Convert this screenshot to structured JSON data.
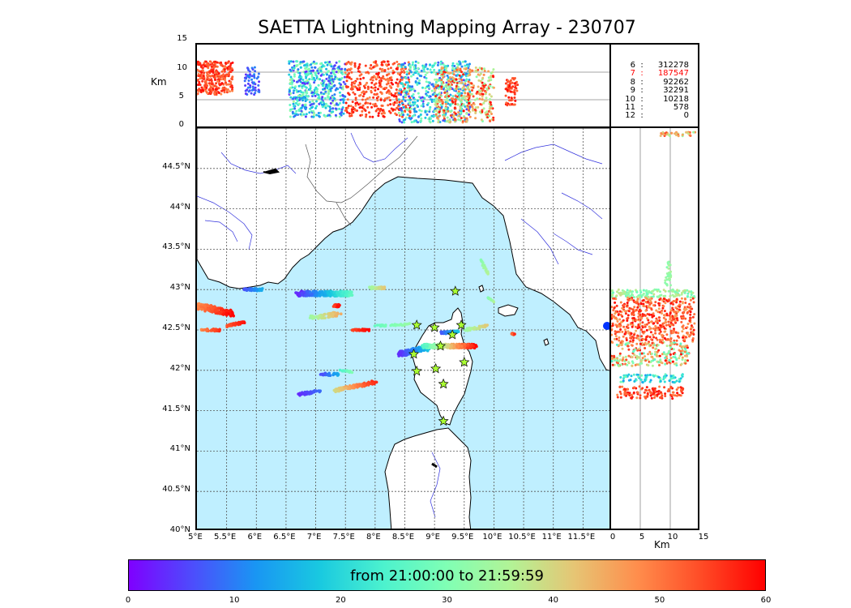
{
  "title": "SAETTA Lightning Mapping Array - 230707",
  "altitude_panel": {
    "ylabel": "Km",
    "yticks": [
      "15",
      "10",
      "5",
      "0"
    ]
  },
  "lat_alt_panel": {
    "xlabel": "Km",
    "xticks": [
      "0",
      "5",
      "10",
      "15"
    ]
  },
  "map": {
    "lat_ticks": [
      "44.5°N",
      "44°N",
      "43.5°N",
      "43°N",
      "42.5°N",
      "42°N",
      "41.5°N",
      "41°N",
      "40.5°N",
      "40°N"
    ],
    "lon_ticks": [
      "5°E",
      "5.5°E",
      "6°E",
      "6.5°E",
      "7°E",
      "7.5°E",
      "8°E",
      "8.5°E",
      "9°E",
      "9.5°E",
      "10°E",
      "10.5°E",
      "11°E",
      "11.5°E"
    ],
    "sea_color": "#bfefff",
    "land_color": "#ffffff",
    "station_marker": "star-icon"
  },
  "stats": [
    {
      "k": "6",
      "v": "312278",
      "active": false
    },
    {
      "k": "7",
      "v": "187547",
      "active": true
    },
    {
      "k": "8",
      "v": "92262",
      "active": false
    },
    {
      "k": "9",
      "v": "32291",
      "active": false
    },
    {
      "k": "10",
      "v": "10218",
      "active": false
    },
    {
      "k": "11",
      "v": "578",
      "active": false
    },
    {
      "k": "12",
      "v": "0",
      "active": false
    }
  ],
  "colorbar": {
    "label": "from 21:00:00 to 21:59:59",
    "ticks": [
      "0",
      "10",
      "20",
      "30",
      "40",
      "50",
      "60"
    ],
    "colors": [
      "#7f00ff",
      "#1996f3",
      "#80ffb4",
      "#ff8d4c",
      "#ff0000"
    ]
  }
}
